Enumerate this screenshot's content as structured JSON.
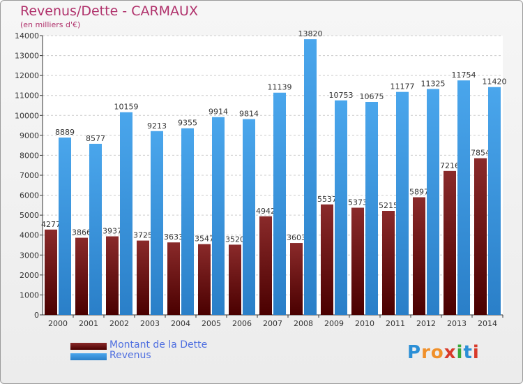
{
  "chart_data": {
    "type": "bar",
    "title": "Revenus/Dette - CARMAUX",
    "subtitle": "(en milliers d'€)",
    "categories": [
      "2000",
      "2001",
      "2002",
      "2003",
      "2004",
      "2005",
      "2006",
      "2007",
      "2008",
      "2009",
      "2010",
      "2011",
      "2012",
      "2013",
      "2014"
    ],
    "series": [
      {
        "name": "Montant de la Dette",
        "color": "#7a1a1a",
        "values": [
          4277,
          3866,
          3937,
          3725,
          3633,
          3547,
          3520,
          4942,
          3603,
          5537,
          5373,
          5215,
          5897,
          7216,
          7854
        ],
        "labels": [
          "4277",
          "3866",
          "3937",
          "3725",
          "3633",
          "3547",
          "3520",
          "4942",
          "3603",
          "5537",
          "5373",
          "5215",
          "5897",
          "7216",
          "7854"
        ]
      },
      {
        "name": "Revenus",
        "color": "#3b95df",
        "values": [
          8889,
          8577,
          10159,
          9213,
          9355,
          9914,
          9814,
          11139,
          13820,
          10753,
          10675,
          11177,
          11325,
          11754,
          11420
        ],
        "labels": [
          "8889",
          "8577",
          "10159",
          "9213",
          "9355",
          "9914",
          "9814",
          "11139",
          "13820",
          "10753",
          "10675",
          "11177",
          "11325",
          "11754",
          "11420"
        ]
      }
    ],
    "ylim": [
      0,
      14000
    ],
    "yticks": [
      0,
      1000,
      2000,
      3000,
      4000,
      5000,
      6000,
      7000,
      8000,
      9000,
      10000,
      11000,
      12000,
      13000,
      14000
    ],
    "grid": true,
    "legend_position": "bottom-left"
  },
  "logo": {
    "text": "Proxiti",
    "letters": [
      "P",
      "r",
      "o",
      "x",
      "i",
      "t",
      "i"
    ],
    "colors": [
      "#2b8fd6",
      "#f0902a",
      "#f0902a",
      "#d83a2a",
      "#3aa83a",
      "#2b8fd6",
      "#d83a2a"
    ]
  }
}
